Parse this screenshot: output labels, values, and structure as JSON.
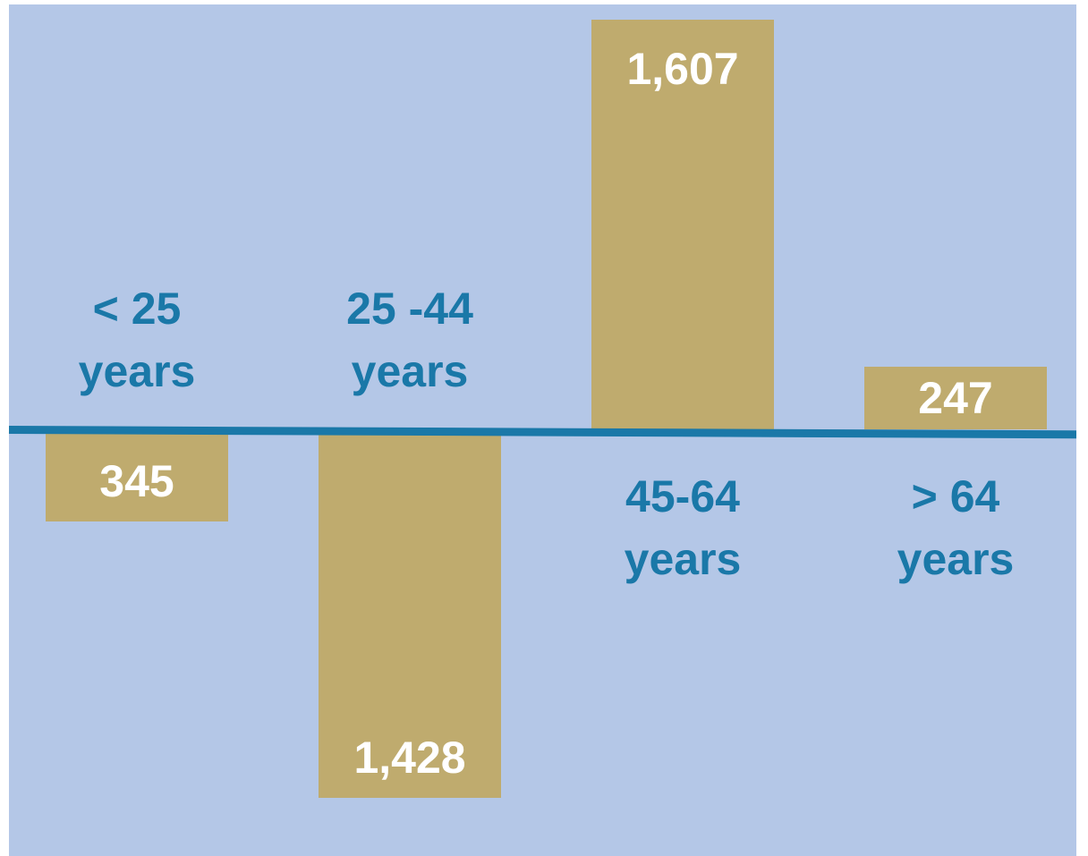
{
  "chart_data": {
    "type": "bar",
    "categories": [
      "< 25 years",
      "25 -44 years",
      "45-64 years",
      "> 64 years"
    ],
    "values": [
      -345,
      -1428,
      1607,
      247
    ],
    "value_labels": [
      "345",
      "1,428",
      "1,607",
      "247"
    ],
    "color": "#bfab6e"
  }
}
